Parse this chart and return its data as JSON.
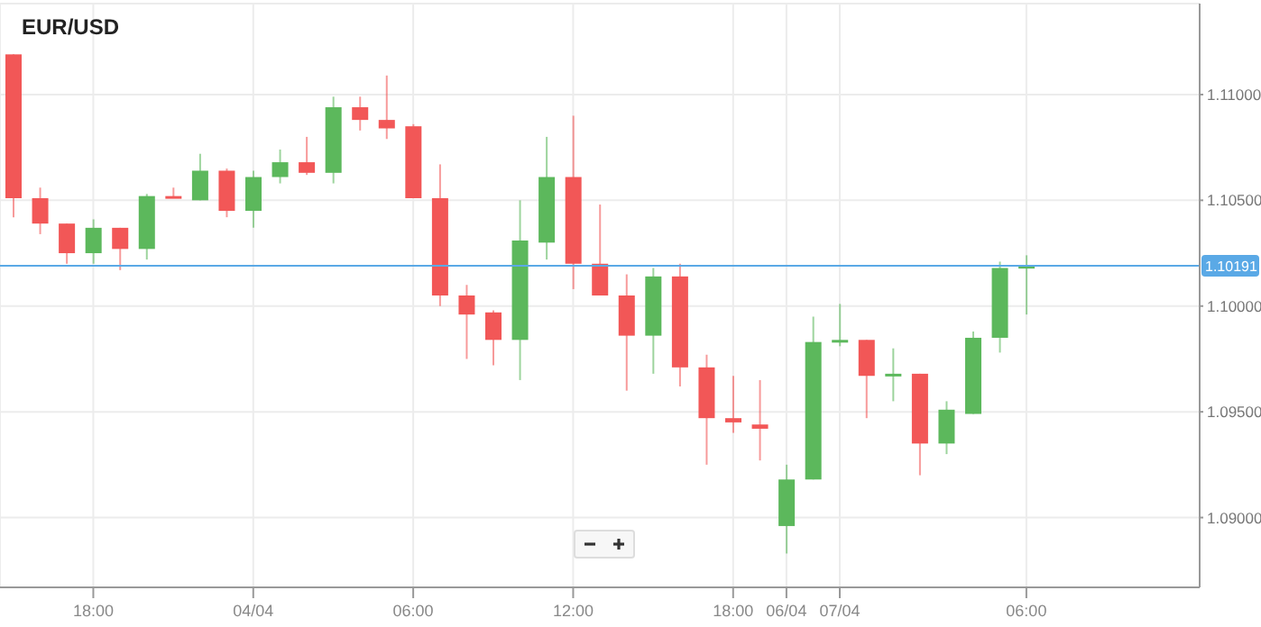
{
  "chart_data": {
    "type": "candlestick",
    "title": "EUR/USD",
    "categories": [
      null,
      null,
      null,
      "18:00",
      null,
      null,
      null,
      null,
      null,
      "04/04",
      null,
      null,
      null,
      null,
      null,
      "06:00",
      null,
      null,
      null,
      null,
      null,
      "12:00",
      null,
      null,
      null,
      null,
      null,
      "18:00",
      null,
      "06/04",
      null,
      "07/04",
      null,
      null,
      null,
      null,
      null,
      null,
      "06:00",
      null,
      null,
      null,
      null,
      null,
      null
    ],
    "ohlc": [
      [
        1.1119,
        1.1119,
        1.1042,
        1.1051
      ],
      [
        1.1051,
        1.1056,
        1.1034,
        1.1039
      ],
      [
        1.1039,
        1.1039,
        1.102,
        1.1025
      ],
      [
        1.1025,
        1.1041,
        1.102,
        1.1037
      ],
      [
        1.1037,
        1.1037,
        1.1017,
        1.1027
      ],
      [
        1.1027,
        1.1053,
        1.1022,
        1.1052
      ],
      [
        1.1052,
        1.1056,
        1.1051,
        1.1051
      ],
      [
        1.105,
        1.1072,
        1.105,
        1.1064
      ],
      [
        1.1064,
        1.1065,
        1.1042,
        1.1045
      ],
      [
        1.1045,
        1.1064,
        1.1037,
        1.1061
      ],
      [
        1.1061,
        1.1074,
        1.1058,
        1.1068
      ],
      [
        1.1068,
        1.108,
        1.1062,
        1.1063
      ],
      [
        1.1063,
        1.1099,
        1.1058,
        1.1094
      ],
      [
        1.1094,
        1.1099,
        1.1083,
        1.1088
      ],
      [
        1.1088,
        1.1109,
        1.1079,
        1.1084
      ],
      [
        1.1085,
        1.1086,
        1.1051,
        1.1051
      ],
      [
        1.1051,
        1.1067,
        1.1,
        1.1005
      ],
      [
        1.1005,
        1.101,
        1.0975,
        1.0996
      ],
      [
        1.0997,
        1.0998,
        1.0972,
        1.0984
      ],
      [
        1.0984,
        1.105,
        1.0965,
        1.1031
      ],
      [
        1.103,
        1.108,
        1.1022,
        1.1061
      ],
      [
        1.1061,
        1.109,
        1.1008,
        1.102
      ],
      [
        1.102,
        1.1048,
        1.1005,
        1.1005
      ],
      [
        1.1005,
        1.1015,
        1.096,
        1.0986
      ],
      [
        1.0986,
        1.1018,
        1.0968,
        1.1014
      ],
      [
        1.1014,
        1.102,
        1.0962,
        1.0971
      ],
      [
        1.0971,
        1.0977,
        1.0925,
        1.0947
      ],
      [
        1.0947,
        1.0967,
        1.094,
        1.0945
      ],
      [
        1.0944,
        1.0965,
        1.0927,
        1.0942
      ],
      [
        1.0896,
        1.0925,
        1.0883,
        1.0918
      ],
      [
        1.0918,
        1.0995,
        1.0918,
        1.0983
      ],
      [
        1.0983,
        1.1001,
        1.0981,
        1.0984
      ],
      [
        1.0984,
        1.0984,
        1.0947,
        1.0967
      ],
      [
        1.0967,
        1.098,
        1.0955,
        1.0968
      ],
      [
        1.0968,
        1.0968,
        1.092,
        1.0935
      ],
      [
        1.0935,
        1.0955,
        1.093,
        1.0951
      ],
      [
        1.0949,
        1.0988,
        1.0949,
        1.0985
      ],
      [
        1.0985,
        1.1021,
        1.0978,
        1.1018
      ],
      [
        1.1018,
        1.1024,
        1.0996,
        1.1019
      ],
      null,
      null,
      null,
      null,
      null,
      null
    ],
    "colors": [
      "#f25757",
      "#f25757",
      "#f25757",
      "#5cb85c",
      "#f25757",
      "#5cb85c",
      "#f25757",
      "#5cb85c",
      "#f25757",
      "#5cb85c",
      "#5cb85c",
      "#f25757",
      "#5cb85c",
      "#f25757",
      "#f25757",
      "#f25757",
      "#f25757",
      "#f25757",
      "#f25757",
      "#5cb85c",
      "#5cb85c",
      "#f25757",
      "#f25757",
      "#f25757",
      "#5cb85c",
      "#f25757",
      "#f25757",
      "#f25757",
      "#f25757",
      "#5cb85c",
      "#5cb85c",
      "#5cb85c",
      "#f25757",
      "#5cb85c",
      "#f25757",
      "#5cb85c",
      "#5cb85c",
      "#5cb85c",
      "#5cb85c",
      null,
      null,
      null,
      null,
      null,
      null
    ],
    "ylim": [
      1.0867,
      1.1143
    ],
    "yticks": [
      {
        "value": 1.09,
        "label": "1.09000"
      },
      {
        "value": 1.095,
        "label": "1.09500"
      },
      {
        "value": 1.1,
        "label": "1.10000"
      },
      {
        "value": 1.105,
        "label": "1.10500"
      },
      {
        "value": 1.11,
        "label": "1.11000"
      }
    ],
    "ref_lines": [
      {
        "axis": "y",
        "value": 1.10191,
        "label": "1.10191",
        "color": "#5aa9e6"
      }
    ],
    "grid": true
  }
}
